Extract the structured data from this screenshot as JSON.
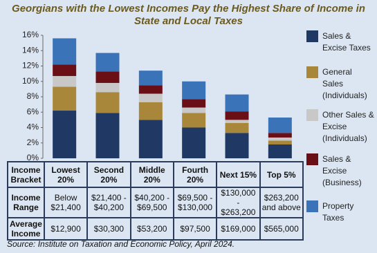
{
  "chart_data": {
    "type": "stacked_bar",
    "title": "Georgians with the Lowest Incomes Pay the Highest Share of Income in State and Local Taxes",
    "categories": [
      "Lowest 20%",
      "Second 20%",
      "Middle 20%",
      "Fourth 20%",
      "Next 15%",
      "Top 5%"
    ],
    "series": [
      {
        "name": "Sales & Excise Taxes",
        "color": "#1f3864",
        "values": [
          6.2,
          5.9,
          5.0,
          4.0,
          3.3,
          1.8
        ]
      },
      {
        "name": "General Sales (Individuals)",
        "color": "#a8873a",
        "values": [
          3.1,
          2.7,
          2.3,
          1.9,
          1.3,
          0.5
        ]
      },
      {
        "name": "Other Sales & Excise (Individuals)",
        "color": "#c8c8c8",
        "values": [
          1.4,
          1.2,
          1.1,
          0.7,
          0.4,
          0.4
        ]
      },
      {
        "name": "Sales & Excise (Business)",
        "color": "#6b0f17",
        "values": [
          1.5,
          1.5,
          1.1,
          1.1,
          1.1,
          0.6
        ]
      },
      {
        "name": "Property Taxes",
        "color": "#3b73b9",
        "values": [
          3.4,
          2.4,
          1.9,
          2.3,
          2.2,
          2.0
        ]
      }
    ],
    "ylim": [
      0,
      16
    ],
    "yticks": [
      {
        "value": 0,
        "label": "0%"
      },
      {
        "value": 2,
        "label": "2%"
      },
      {
        "value": 4,
        "label": "4%"
      },
      {
        "value": 6,
        "label": "6%"
      },
      {
        "value": 8,
        "label": "8%"
      },
      {
        "value": 10,
        "label": "10%"
      },
      {
        "value": 12,
        "label": "12%"
      },
      {
        "value": 14,
        "label": "14%"
      },
      {
        "value": 16,
        "label": "16%"
      }
    ],
    "grid": false,
    "legend": "right",
    "table": {
      "header": "Income Bracket",
      "rows": [
        {
          "label": "Income Range",
          "cells": [
            "Below $21,400",
            "$21,400 - $40,200",
            "$40,200 - $69,500",
            "$69,500 - $130,000",
            "$130,000 - $263,200",
            "$263,200 and above"
          ]
        },
        {
          "label": "Average Income",
          "cells": [
            "$12,900",
            "$30,300",
            "$53,200",
            "$97,500",
            "$169,000",
            "$565,000"
          ]
        }
      ]
    },
    "source": "Source: Institute on Taxation and Economic Policy, April 2024."
  }
}
